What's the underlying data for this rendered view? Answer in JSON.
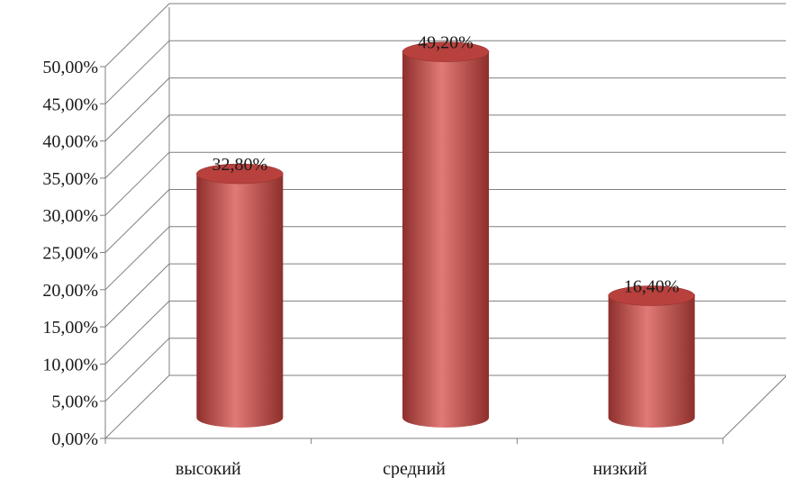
{
  "chart_data": {
    "type": "bar",
    "style": "3d-cylinder",
    "categories": [
      "высокий",
      "средний",
      "низкий"
    ],
    "values": [
      32.8,
      49.2,
      16.4
    ],
    "data_labels": [
      "32,80%",
      "49,20%",
      "16,40%"
    ],
    "ylim": [
      0,
      50
    ],
    "yticks": [
      0,
      5,
      10,
      15,
      20,
      25,
      30,
      35,
      40,
      45,
      50
    ],
    "ytick_labels": [
      "0,00%",
      "5,00%",
      "10,00%",
      "15,00%",
      "20,00%",
      "25,00%",
      "30,00%",
      "35,00%",
      "40,00%",
      "45,00%",
      "50,00%"
    ],
    "title": "",
    "xlabel": "",
    "ylabel": "",
    "grid": true,
    "legend": "none",
    "colors": {
      "bar": "#c0504d",
      "bar_light": "#e07a76",
      "bar_dark": "#8e2f2c",
      "bar_top": "#b8403d",
      "grid": "#7f7f7f"
    }
  }
}
